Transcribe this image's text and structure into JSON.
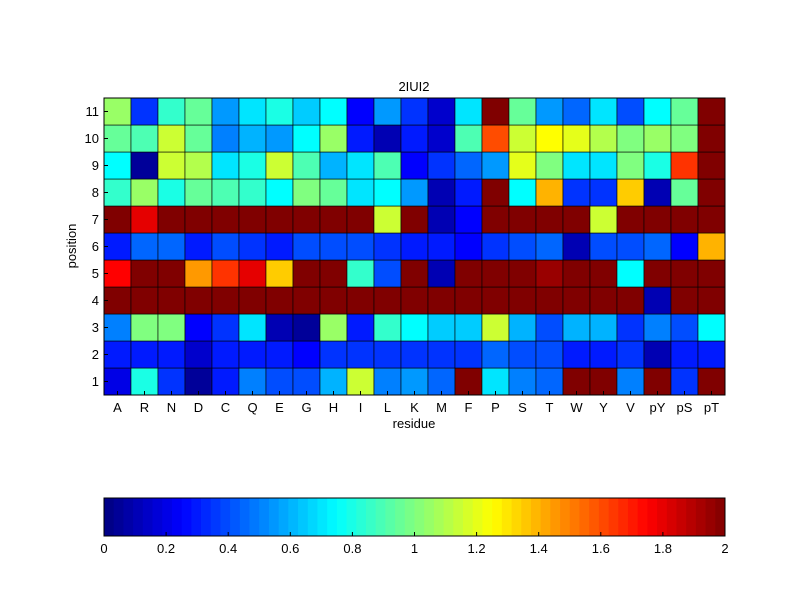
{
  "chart_data": {
    "type": "heatmap",
    "title": "2IUI2",
    "xlabel": "residue",
    "ylabel": "position",
    "x_categories": [
      "A",
      "R",
      "N",
      "D",
      "C",
      "Q",
      "E",
      "G",
      "H",
      "I",
      "L",
      "K",
      "M",
      "F",
      "P",
      "S",
      "T",
      "W",
      "Y",
      "V",
      "pY",
      "pS",
      "pT"
    ],
    "y_categories": [
      "1",
      "2",
      "3",
      "4",
      "5",
      "6",
      "7",
      "8",
      "9",
      "10",
      "11"
    ],
    "colormap": "jet",
    "color_range": [
      0,
      2
    ],
    "colorbar": {
      "placement": "bottom",
      "ticks": [
        0,
        0.2,
        0.4,
        0.6,
        0.8,
        1,
        1.2,
        1.4,
        1.6,
        1.8,
        2
      ],
      "tick_labels": [
        "0",
        "0.2",
        "0.4",
        "0.6",
        "0.8",
        "1",
        "1.2",
        "1.4",
        "1.6",
        "1.8",
        "2"
      ]
    },
    "values": [
      [
        0.2,
        0.8,
        0.35,
        0.05,
        0.3,
        0.5,
        0.4,
        0.4,
        0.6,
        1.15,
        0.5,
        0.55,
        0.45,
        2.0,
        0.7,
        0.5,
        0.45,
        2.0,
        2.0,
        0.5,
        2.0,
        0.35,
        2.0
      ],
      [
        0.3,
        0.3,
        0.3,
        0.15,
        0.3,
        0.3,
        0.3,
        0.25,
        0.35,
        0.35,
        0.35,
        0.35,
        0.35,
        0.35,
        0.45,
        0.4,
        0.4,
        0.3,
        0.3,
        0.35,
        0.1,
        0.3,
        0.3
      ],
      [
        0.5,
        1.0,
        1.0,
        0.25,
        0.35,
        0.7,
        0.1,
        0.05,
        1.05,
        0.3,
        0.85,
        0.75,
        0.65,
        0.65,
        1.15,
        0.6,
        0.4,
        0.6,
        0.6,
        0.35,
        0.5,
        0.4,
        0.75
      ],
      [
        2.0,
        2.0,
        2.0,
        2.0,
        2.0,
        2.0,
        2.0,
        2.0,
        2.0,
        2.0,
        2.0,
        2.0,
        2.0,
        2.0,
        2.0,
        2.0,
        2.0,
        2.0,
        2.0,
        2.0,
        0.1,
        2.0,
        2.0
      ],
      [
        1.75,
        2.0,
        2.0,
        1.45,
        1.65,
        1.8,
        1.35,
        2.0,
        2.0,
        0.85,
        0.4,
        2.0,
        0.1,
        2.0,
        2.0,
        2.0,
        1.95,
        2.0,
        2.0,
        0.75,
        2.0,
        2.0,
        2.0
      ],
      [
        0.3,
        0.45,
        0.45,
        0.3,
        0.4,
        0.35,
        0.3,
        0.4,
        0.4,
        0.4,
        0.35,
        0.3,
        0.3,
        0.25,
        0.35,
        0.4,
        0.45,
        0.1,
        0.4,
        0.4,
        0.45,
        0.25,
        1.4
      ],
      [
        2.0,
        1.8,
        2.0,
        2.0,
        2.0,
        2.0,
        2.0,
        2.0,
        2.0,
        2.0,
        1.15,
        2.0,
        0.1,
        0.25,
        2.0,
        2.0,
        2.0,
        2.0,
        1.15,
        2.0,
        2.0,
        2.0,
        2.0
      ],
      [
        0.85,
        1.05,
        0.8,
        0.95,
        0.9,
        0.85,
        0.75,
        1.0,
        0.95,
        0.7,
        0.75,
        0.55,
        0.1,
        0.3,
        2.0,
        0.75,
        1.4,
        0.35,
        0.35,
        1.35,
        0.1,
        0.95,
        2.0
      ],
      [
        0.75,
        0.05,
        1.15,
        1.1,
        0.7,
        0.8,
        1.15,
        0.9,
        0.6,
        0.7,
        0.9,
        0.25,
        0.35,
        0.45,
        0.55,
        1.2,
        1.0,
        0.7,
        0.7,
        1.0,
        0.8,
        1.65,
        2.0
      ],
      [
        0.95,
        0.9,
        1.15,
        0.95,
        0.5,
        0.6,
        0.55,
        0.75,
        1.05,
        0.3,
        0.1,
        0.3,
        0.15,
        0.9,
        1.6,
        1.15,
        1.25,
        1.2,
        1.1,
        1.0,
        1.05,
        1.0,
        2.0
      ],
      [
        1.05,
        0.35,
        0.85,
        0.95,
        0.55,
        0.7,
        0.8,
        0.65,
        0.75,
        0.25,
        0.55,
        0.35,
        0.15,
        0.7,
        2.0,
        0.95,
        0.55,
        0.45,
        0.7,
        0.4,
        0.75,
        0.95,
        2.0
      ]
    ]
  }
}
